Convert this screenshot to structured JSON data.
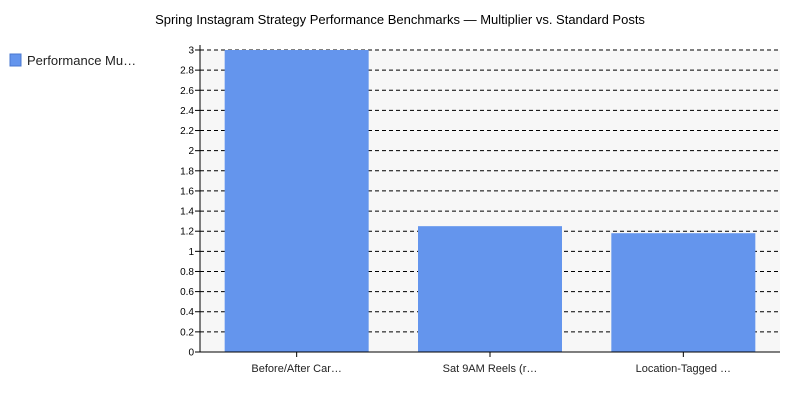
{
  "chart_data": {
    "type": "bar",
    "title": "Spring Instagram Strategy Performance Benchmarks — Multiplier vs. Standard Posts",
    "xlabel": "",
    "ylabel": "",
    "categories": [
      "Before/After Car…",
      "Sat 9AM Reels (r…",
      "Location-Tagged …"
    ],
    "series": [
      {
        "name": "Performance Mu…",
        "color": "#6495ED",
        "values": [
          3.0,
          1.25,
          1.18
        ]
      }
    ],
    "ylim": [
      0,
      3
    ],
    "yticks": [
      "0",
      "0.2",
      "0.4",
      "0.6",
      "0.8",
      "1",
      "1.2",
      "1.4",
      "1.6",
      "1.8",
      "2",
      "2.2",
      "2.4",
      "2.6",
      "2.8",
      "3"
    ],
    "grid": true,
    "legend_position": "left"
  }
}
